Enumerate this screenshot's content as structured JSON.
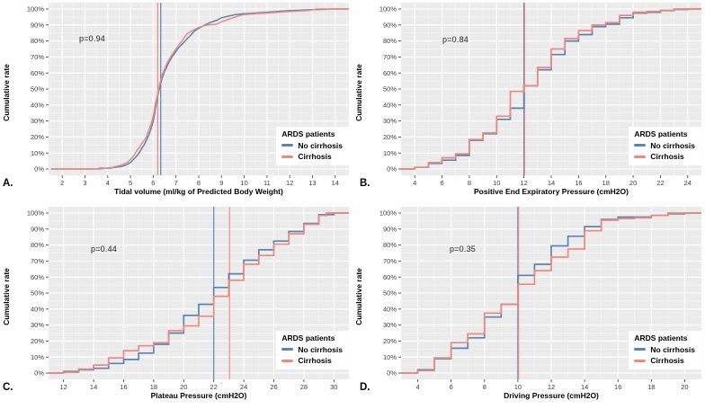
{
  "figure": {
    "legend": {
      "title": "ARDS patients",
      "items": [
        {
          "key": "no_cirrhosis",
          "label": "No cirrhosis"
        },
        {
          "key": "cirrhosis",
          "label": "Cirrhosis"
        }
      ]
    },
    "colors": {
      "no_cirrhosis": "#5b84b5",
      "cirrhosis": "#f0897d",
      "panel_bg": "#ebebeb",
      "grid_major": "#ffffff",
      "grid_minor": "#f4f4f4",
      "tick_text": "#404040",
      "tick_mark": "#333333"
    },
    "yticks": [
      "0%",
      "10%",
      "20%",
      "30%",
      "40%",
      "50%",
      "60%",
      "70%",
      "80%",
      "90%",
      "100%"
    ]
  },
  "chart_data": [
    {
      "panel_label": "A.",
      "type": "line",
      "p_value": "p=0.94",
      "xlabel": "Tidal volume (ml/kg of Predicted Body Weight)",
      "ylabel": "Cumulative rate",
      "xlim": [
        1.4,
        14.6
      ],
      "xticks": [
        2,
        3,
        4,
        5,
        6,
        7,
        8,
        9,
        10,
        11,
        12,
        13,
        14
      ],
      "ylim": [
        0,
        100
      ],
      "vlines": [
        {
          "x": 6.33,
          "key": "no_cirrhosis"
        },
        {
          "x": 6.2,
          "key": "cirrhosis"
        }
      ],
      "series": [
        {
          "name": "No cirrhosis",
          "key": "no_cirrhosis",
          "points": [
            [
              1.5,
              0
            ],
            [
              3.5,
              0
            ],
            [
              3.7,
              0.5
            ],
            [
              4.1,
              0.5
            ],
            [
              4.3,
              1
            ],
            [
              4.6,
              1.5
            ],
            [
              4.8,
              2.5
            ],
            [
              5.0,
              4
            ],
            [
              5.1,
              5.5
            ],
            [
              5.2,
              7
            ],
            [
              5.3,
              8.5
            ],
            [
              5.4,
              10.5
            ],
            [
              5.5,
              13
            ],
            [
              5.6,
              15
            ],
            [
              5.7,
              18
            ],
            [
              5.8,
              21
            ],
            [
              5.9,
              25
            ],
            [
              6.0,
              30
            ],
            [
              6.05,
              34
            ],
            [
              6.1,
              38
            ],
            [
              6.15,
              42
            ],
            [
              6.2,
              46
            ],
            [
              6.25,
              49
            ],
            [
              6.3,
              52
            ],
            [
              6.4,
              57
            ],
            [
              6.5,
              61
            ],
            [
              6.6,
              64
            ],
            [
              6.7,
              67
            ],
            [
              6.8,
              69.5
            ],
            [
              6.9,
              71.5
            ],
            [
              7.0,
              73.5
            ],
            [
              7.1,
              75.5
            ],
            [
              7.2,
              77
            ],
            [
              7.3,
              78.5
            ],
            [
              7.4,
              80
            ],
            [
              7.5,
              81.5
            ],
            [
              7.6,
              83
            ],
            [
              7.8,
              86
            ],
            [
              8.0,
              88
            ],
            [
              8.2,
              89.5
            ],
            [
              8.5,
              91.5
            ],
            [
              8.8,
              93
            ],
            [
              9.0,
              94.5
            ],
            [
              9.3,
              95.5
            ],
            [
              9.6,
              96.5
            ],
            [
              10.0,
              97
            ],
            [
              10.5,
              97.5
            ],
            [
              11.0,
              98
            ],
            [
              11.5,
              98.5
            ],
            [
              12.0,
              99
            ],
            [
              12.5,
              99.3
            ],
            [
              13.0,
              99.6
            ],
            [
              13.5,
              99.8
            ],
            [
              14.0,
              100
            ],
            [
              14.6,
              100
            ]
          ]
        },
        {
          "name": "Cirrhosis",
          "key": "cirrhosis",
          "points": [
            [
              1.5,
              0
            ],
            [
              3.7,
              0
            ],
            [
              3.9,
              0.5
            ],
            [
              4.2,
              1
            ],
            [
              4.5,
              2
            ],
            [
              4.7,
              3
            ],
            [
              4.9,
              4.5
            ],
            [
              5.0,
              6
            ],
            [
              5.1,
              7.5
            ],
            [
              5.2,
              9.5
            ],
            [
              5.3,
              12
            ],
            [
              5.4,
              13.5
            ],
            [
              5.5,
              16
            ],
            [
              5.6,
              18
            ],
            [
              5.7,
              20
            ],
            [
              5.8,
              24
            ],
            [
              5.9,
              28
            ],
            [
              6.0,
              33
            ],
            [
              6.05,
              37
            ],
            [
              6.1,
              41
            ],
            [
              6.15,
              44
            ],
            [
              6.2,
              47
            ],
            [
              6.25,
              51
            ],
            [
              6.3,
              54
            ],
            [
              6.4,
              59
            ],
            [
              6.5,
              62.5
            ],
            [
              6.6,
              66
            ],
            [
              6.7,
              68.5
            ],
            [
              6.8,
              71
            ],
            [
              6.9,
              73
            ],
            [
              7.0,
              75
            ],
            [
              7.1,
              77
            ],
            [
              7.2,
              79
            ],
            [
              7.3,
              80.5
            ],
            [
              7.35,
              82
            ],
            [
              7.5,
              84.5
            ],
            [
              7.6,
              85.5
            ],
            [
              7.8,
              87
            ],
            [
              8.0,
              88.5
            ],
            [
              8.2,
              89.5
            ],
            [
              8.4,
              90
            ],
            [
              8.8,
              90.5
            ],
            [
              9.0,
              92
            ],
            [
              9.2,
              93
            ],
            [
              9.5,
              94.5
            ],
            [
              9.7,
              95.5
            ],
            [
              10.0,
              96.5
            ],
            [
              10.5,
              97
            ],
            [
              11.0,
              97.5
            ],
            [
              12.0,
              98.5
            ],
            [
              12.8,
              99
            ],
            [
              13.0,
              99.5
            ],
            [
              13.2,
              100
            ],
            [
              14.6,
              100
            ]
          ]
        }
      ]
    },
    {
      "panel_label": "B.",
      "type": "step",
      "p_value": "p=0.84",
      "xlabel": "Positive End Expiratory Pressure (cmH2O)",
      "ylabel": "Cumulative rate",
      "xlim": [
        3,
        25
      ],
      "xticks": [
        4,
        6,
        8,
        10,
        12,
        14,
        16,
        18,
        20,
        22,
        24
      ],
      "ylim": [
        0,
        100
      ],
      "vlines": [
        {
          "x": 12,
          "key": "no_cirrhosis"
        },
        {
          "x": 12,
          "key": "cirrhosis"
        }
      ],
      "series": [
        {
          "name": "No cirrhosis",
          "key": "no_cirrhosis",
          "points": [
            [
              4,
              1
            ],
            [
              5,
              3.5
            ],
            [
              6,
              5.5
            ],
            [
              7,
              8.5
            ],
            [
              8,
              18
            ],
            [
              9,
              22
            ],
            [
              10,
              31
            ],
            [
              11,
              38
            ],
            [
              12,
              52
            ],
            [
              13,
              62
            ],
            [
              14,
              71.5
            ],
            [
              15,
              80
            ],
            [
              16,
              84
            ],
            [
              17,
              89
            ],
            [
              18,
              90.5
            ],
            [
              19,
              94.5
            ],
            [
              20,
              97.5
            ],
            [
              21,
              98
            ],
            [
              22,
              99
            ],
            [
              23,
              99.7
            ],
            [
              24,
              100
            ]
          ]
        },
        {
          "name": "Cirrhosis",
          "key": "cirrhosis",
          "points": [
            [
              4,
              1
            ],
            [
              5,
              4
            ],
            [
              6,
              7
            ],
            [
              7,
              9.5
            ],
            [
              8,
              18.5
            ],
            [
              9,
              22.5
            ],
            [
              10,
              33
            ],
            [
              11,
              48.5
            ],
            [
              12,
              52
            ],
            [
              13,
              63.5
            ],
            [
              14,
              75
            ],
            [
              15,
              81.5
            ],
            [
              16,
              86.5
            ],
            [
              17,
              90
            ],
            [
              18,
              91.5
            ],
            [
              19,
              96
            ],
            [
              20,
              98
            ],
            [
              21,
              98.5
            ],
            [
              22,
              99.2
            ],
            [
              23,
              100
            ]
          ]
        }
      ]
    },
    {
      "panel_label": "C.",
      "type": "step",
      "p_value": "p=0.44",
      "xlabel": "Plateau Pressure (cmH2O)",
      "ylabel": "Cumulative rate",
      "xlim": [
        11,
        31
      ],
      "xticks": [
        12,
        14,
        16,
        18,
        20,
        22,
        24,
        26,
        28,
        30
      ],
      "ylim": [
        0,
        100
      ],
      "vlines": [
        {
          "x": 22,
          "key": "no_cirrhosis"
        },
        {
          "x": 23.05,
          "key": "cirrhosis"
        }
      ],
      "series": [
        {
          "name": "No cirrhosis",
          "key": "no_cirrhosis",
          "points": [
            [
              12,
              1
            ],
            [
              13,
              2
            ],
            [
              14,
              3
            ],
            [
              15,
              6
            ],
            [
              16,
              8.5
            ],
            [
              17,
              12.5
            ],
            [
              18,
              18
            ],
            [
              19,
              25
            ],
            [
              20,
              36
            ],
            [
              21,
              43
            ],
            [
              22,
              53.5
            ],
            [
              23,
              62
            ],
            [
              24,
              70.5
            ],
            [
              25,
              77
            ],
            [
              26,
              82.5
            ],
            [
              27,
              88.5
            ],
            [
              28,
              93.5
            ],
            [
              29,
              99
            ],
            [
              30,
              100
            ]
          ]
        },
        {
          "name": "Cirrhosis",
          "key": "cirrhosis",
          "points": [
            [
              12,
              0.5
            ],
            [
              13,
              2.5
            ],
            [
              14,
              5
            ],
            [
              15,
              9.5
            ],
            [
              16,
              14
            ],
            [
              17,
              17
            ],
            [
              18,
              19
            ],
            [
              19,
              26.5
            ],
            [
              20,
              29.5
            ],
            [
              21,
              35.5
            ],
            [
              22,
              48
            ],
            [
              23,
              58
            ],
            [
              24,
              68
            ],
            [
              25,
              73.5
            ],
            [
              26,
              80.5
            ],
            [
              27,
              87
            ],
            [
              28,
              93
            ],
            [
              29,
              98.5
            ],
            [
              29.5,
              100
            ]
          ]
        }
      ]
    },
    {
      "panel_label": "D.",
      "type": "step",
      "p_value": "p=0.35",
      "xlabel": "Driving Pressure (cmH2O)",
      "ylabel": "Cumulative rate",
      "xlim": [
        3,
        21
      ],
      "xticks": [
        4,
        6,
        8,
        10,
        12,
        14,
        16,
        18,
        20
      ],
      "ylim": [
        0,
        100
      ],
      "vlines": [
        {
          "x": 10,
          "key": "no_cirrhosis"
        },
        {
          "x": 10,
          "key": "cirrhosis"
        }
      ],
      "series": [
        {
          "name": "No cirrhosis",
          "key": "no_cirrhosis",
          "points": [
            [
              4,
              2
            ],
            [
              5,
              9
            ],
            [
              6,
              15.5
            ],
            [
              7,
              22
            ],
            [
              8,
              35
            ],
            [
              9,
              43
            ],
            [
              10,
              61
            ],
            [
              11,
              68
            ],
            [
              12,
              79.5
            ],
            [
              13,
              85.5
            ],
            [
              14,
              91.5
            ],
            [
              15,
              96
            ],
            [
              16,
              97.5
            ],
            [
              18,
              98.5
            ],
            [
              19,
              99.5
            ],
            [
              20,
              100
            ]
          ]
        },
        {
          "name": "Cirrhosis",
          "key": "cirrhosis",
          "points": [
            [
              4,
              1.5
            ],
            [
              5,
              9.5
            ],
            [
              6,
              19
            ],
            [
              7,
              24.5
            ],
            [
              8,
              37.5
            ],
            [
              9,
              43
            ],
            [
              10,
              55.5
            ],
            [
              11,
              64
            ],
            [
              12,
              72.5
            ],
            [
              13,
              77.5
            ],
            [
              14,
              89
            ],
            [
              15,
              95.5
            ],
            [
              16,
              96.5
            ],
            [
              17,
              97
            ],
            [
              18,
              98.5
            ],
            [
              19,
              100
            ]
          ]
        }
      ]
    }
  ]
}
